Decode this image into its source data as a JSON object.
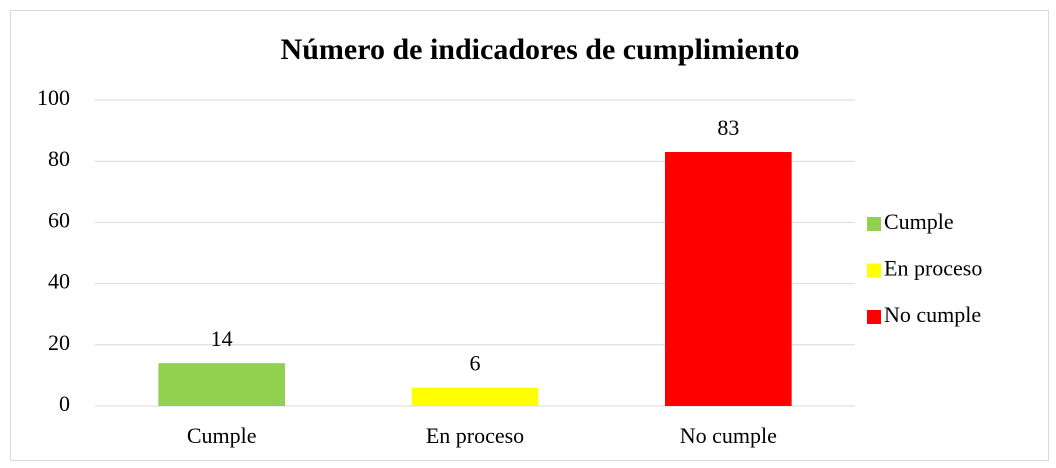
{
  "chart_data": {
    "type": "bar",
    "title": "Número de indicadores de cumplimiento",
    "categories": [
      "Cumple",
      "En proceso",
      "No cumple"
    ],
    "values": [
      14,
      6,
      83
    ],
    "colors": [
      "#92d050",
      "#ffff00",
      "#ff0000"
    ],
    "ylim": [
      0,
      100
    ],
    "yticks": [
      0,
      20,
      40,
      60,
      80,
      100
    ],
    "grid": true,
    "legend": "right"
  }
}
